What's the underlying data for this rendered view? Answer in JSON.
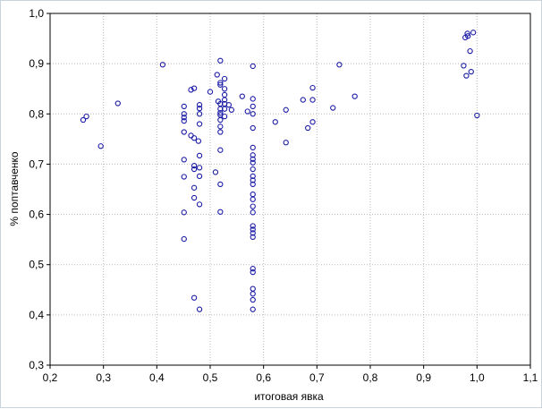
{
  "chart_data": {
    "type": "scatter",
    "title": "",
    "xlabel": "итоговая явка",
    "ylabel": "% поптавченко",
    "xlim": [
      0.2,
      1.1
    ],
    "ylim": [
      0.3,
      1.0
    ],
    "xticks": [
      "0,2",
      "0,3",
      "0,4",
      "0,5",
      "0,6",
      "0,7",
      "0,8",
      "0,9",
      "1,0",
      "1,1"
    ],
    "yticks": [
      "0,3",
      "0,4",
      "0,5",
      "0,6",
      "0,7",
      "0,8",
      "0,9",
      "1,0"
    ],
    "grid": true,
    "marker_color": "#1a1aa6",
    "points": [
      [
        0.262,
        0.788
      ],
      [
        0.268,
        0.795
      ],
      [
        0.295,
        0.736
      ],
      [
        0.327,
        0.821
      ],
      [
        0.411,
        0.898
      ],
      [
        0.451,
        0.815
      ],
      [
        0.451,
        0.8
      ],
      [
        0.451,
        0.793
      ],
      [
        0.451,
        0.786
      ],
      [
        0.451,
        0.764
      ],
      [
        0.451,
        0.709
      ],
      [
        0.451,
        0.675
      ],
      [
        0.451,
        0.604
      ],
      [
        0.451,
        0.551
      ],
      [
        0.464,
        0.848
      ],
      [
        0.47,
        0.851
      ],
      [
        0.464,
        0.757
      ],
      [
        0.47,
        0.752
      ],
      [
        0.478,
        0.746
      ],
      [
        0.47,
        0.697
      ],
      [
        0.47,
        0.69
      ],
      [
        0.47,
        0.653
      ],
      [
        0.47,
        0.633
      ],
      [
        0.47,
        0.434
      ],
      [
        0.48,
        0.818
      ],
      [
        0.48,
        0.811
      ],
      [
        0.48,
        0.8
      ],
      [
        0.48,
        0.78
      ],
      [
        0.48,
        0.717
      ],
      [
        0.48,
        0.693
      ],
      [
        0.48,
        0.676
      ],
      [
        0.48,
        0.62
      ],
      [
        0.48,
        0.411
      ],
      [
        0.5,
        0.844
      ],
      [
        0.51,
        0.684
      ],
      [
        0.513,
        0.878
      ],
      [
        0.515,
        0.825
      ],
      [
        0.519,
        0.906
      ],
      [
        0.519,
        0.862
      ],
      [
        0.519,
        0.858
      ],
      [
        0.519,
        0.82
      ],
      [
        0.519,
        0.81
      ],
      [
        0.519,
        0.802
      ],
      [
        0.519,
        0.798
      ],
      [
        0.519,
        0.788
      ],
      [
        0.519,
        0.775
      ],
      [
        0.519,
        0.764
      ],
      [
        0.519,
        0.728
      ],
      [
        0.519,
        0.66
      ],
      [
        0.519,
        0.605
      ],
      [
        0.527,
        0.87
      ],
      [
        0.527,
        0.85
      ],
      [
        0.527,
        0.838
      ],
      [
        0.527,
        0.828
      ],
      [
        0.527,
        0.82
      ],
      [
        0.527,
        0.81
      ],
      [
        0.527,
        0.795
      ],
      [
        0.535,
        0.818
      ],
      [
        0.54,
        0.808
      ],
      [
        0.56,
        0.835
      ],
      [
        0.57,
        0.805
      ],
      [
        0.58,
        0.895
      ],
      [
        0.58,
        0.83
      ],
      [
        0.58,
        0.815
      ],
      [
        0.58,
        0.8
      ],
      [
        0.58,
        0.772
      ],
      [
        0.58,
        0.733
      ],
      [
        0.58,
        0.718
      ],
      [
        0.58,
        0.71
      ],
      [
        0.58,
        0.703
      ],
      [
        0.58,
        0.69
      ],
      [
        0.58,
        0.676
      ],
      [
        0.58,
        0.668
      ],
      [
        0.58,
        0.66
      ],
      [
        0.58,
        0.64
      ],
      [
        0.58,
        0.63
      ],
      [
        0.58,
        0.616
      ],
      [
        0.58,
        0.604
      ],
      [
        0.58,
        0.577
      ],
      [
        0.58,
        0.57
      ],
      [
        0.58,
        0.563
      ],
      [
        0.58,
        0.555
      ],
      [
        0.58,
        0.492
      ],
      [
        0.58,
        0.485
      ],
      [
        0.58,
        0.452
      ],
      [
        0.58,
        0.442
      ],
      [
        0.58,
        0.43
      ],
      [
        0.58,
        0.411
      ],
      [
        0.622,
        0.784
      ],
      [
        0.642,
        0.808
      ],
      [
        0.642,
        0.743
      ],
      [
        0.674,
        0.828
      ],
      [
        0.683,
        0.772
      ],
      [
        0.692,
        0.852
      ],
      [
        0.692,
        0.828
      ],
      [
        0.692,
        0.784
      ],
      [
        0.73,
        0.812
      ],
      [
        0.742,
        0.898
      ],
      [
        0.771,
        0.835
      ],
      [
        0.975,
        0.896
      ],
      [
        0.978,
        0.952
      ],
      [
        0.982,
        0.96
      ],
      [
        0.98,
        0.876
      ],
      [
        0.983,
        0.955
      ],
      [
        0.987,
        0.925
      ],
      [
        0.989,
        0.884
      ],
      [
        0.993,
        0.962
      ],
      [
        1.0,
        0.797
      ]
    ]
  }
}
